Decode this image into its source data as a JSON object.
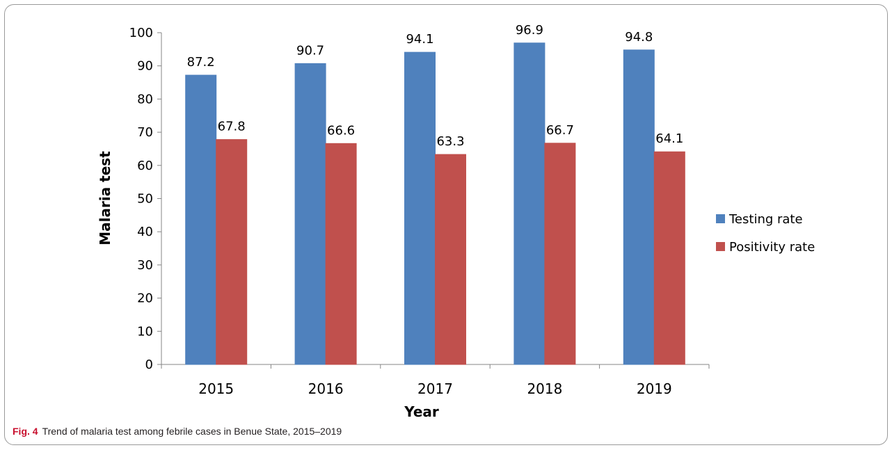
{
  "figure": {
    "label": "Fig. 4",
    "caption": "Trend of malaria test among febrile cases in Benue State, 2015–2019"
  },
  "chart_data": {
    "type": "bar",
    "categories": [
      "2015",
      "2016",
      "2017",
      "2018",
      "2019"
    ],
    "series": [
      {
        "name": "Testing rate",
        "values": [
          87.2,
          90.7,
          94.1,
          96.9,
          94.8
        ],
        "color": "#4f81bd"
      },
      {
        "name": "Positivity rate",
        "values": [
          67.8,
          66.6,
          63.3,
          66.7,
          64.1
        ],
        "color": "#c0504d"
      }
    ],
    "xlabel": "Year",
    "ylabel": "Malaria test",
    "ylim": [
      0,
      100
    ],
    "yticks": [
      0,
      10,
      20,
      30,
      40,
      50,
      60,
      70,
      80,
      90,
      100
    ],
    "grid": false,
    "legend": "right",
    "data_labels": true
  }
}
